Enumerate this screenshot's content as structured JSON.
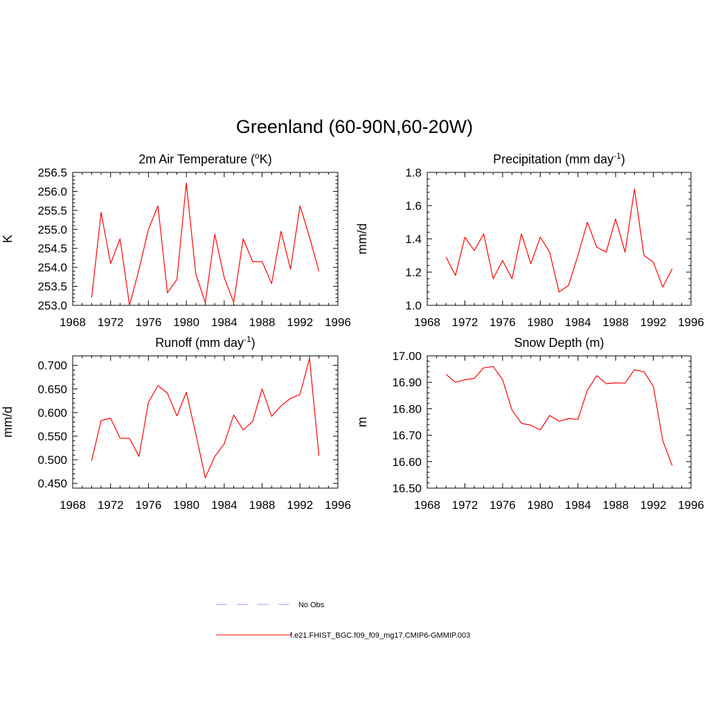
{
  "figure": {
    "title": "Greenland (60-90N,60-20W)"
  },
  "colors": {
    "model": "#ff0000",
    "obs": "#9999ff"
  },
  "legend": [
    {
      "label": "No Obs",
      "style": "dashed",
      "color": "#9999ff"
    },
    {
      "label": "f.e21.FHIST_BGC.f09_f09_mg17.CMIP6-GMMIP.003",
      "style": "solid",
      "color": "#ff0000"
    }
  ],
  "chart_data": [
    {
      "type": "line",
      "title": "2m Air Temperature (",
      "title_sup": "o",
      "title_after": "K)",
      "ylabel": "K",
      "xlim": [
        1968,
        1996
      ],
      "ylim": [
        253.0,
        256.5
      ],
      "xticks": [
        1968,
        1972,
        1976,
        1980,
        1984,
        1988,
        1992,
        1996
      ],
      "yticks": [
        "253.0",
        "253.5",
        "254.0",
        "254.5",
        "255.0",
        "255.5",
        "256.0",
        "256.5"
      ],
      "ytick_values": [
        253.0,
        253.5,
        254.0,
        254.5,
        255.0,
        255.5,
        256.0,
        256.5
      ],
      "x": [
        1970,
        1971,
        1972,
        1973,
        1974,
        1975,
        1976,
        1977,
        1978,
        1979,
        1980,
        1981,
        1982,
        1983,
        1984,
        1985,
        1986,
        1987,
        1988,
        1989,
        1990,
        1991,
        1992,
        1993,
        1994
      ],
      "series": [
        {
          "name": "f.e21.FHIST_BGC.f09_f09_mg17.CMIP6-GMMIP.003",
          "values": [
            253.2,
            255.45,
            254.1,
            254.75,
            253.0,
            253.95,
            255.0,
            255.62,
            253.33,
            253.68,
            256.22,
            253.82,
            253.07,
            254.87,
            253.73,
            253.08,
            254.75,
            254.15,
            254.15,
            253.57,
            254.95,
            253.95,
            255.62,
            254.8,
            253.9
          ]
        }
      ]
    },
    {
      "type": "line",
      "title": "Precipitation (mm day",
      "title_sup": "-1",
      "title_after": ")",
      "ylabel": "mm/d",
      "xlim": [
        1968,
        1996
      ],
      "ylim": [
        1.0,
        1.8
      ],
      "xticks": [
        1968,
        1972,
        1976,
        1980,
        1984,
        1988,
        1992,
        1996
      ],
      "yticks": [
        "1.0",
        "1.2",
        "1.4",
        "1.6",
        "1.8"
      ],
      "ytick_values": [
        1.0,
        1.2,
        1.4,
        1.6,
        1.8
      ],
      "x": [
        1970,
        1971,
        1972,
        1973,
        1974,
        1975,
        1976,
        1977,
        1978,
        1979,
        1980,
        1981,
        1982,
        1983,
        1984,
        1985,
        1986,
        1987,
        1988,
        1989,
        1990,
        1991,
        1992,
        1993,
        1994
      ],
      "series": [
        {
          "name": "f.e21.FHIST_BGC.f09_f09_mg17.CMIP6-GMMIP.003",
          "values": [
            1.29,
            1.18,
            1.41,
            1.33,
            1.43,
            1.16,
            1.27,
            1.16,
            1.43,
            1.25,
            1.41,
            1.32,
            1.08,
            1.12,
            1.3,
            1.5,
            1.35,
            1.32,
            1.52,
            1.32,
            1.7,
            1.3,
            1.26,
            1.11,
            1.22
          ]
        }
      ]
    },
    {
      "type": "line",
      "title": "Runoff (mm day",
      "title_sup": "-1",
      "title_after": ")",
      "ylabel": "mm/d",
      "xlim": [
        1968,
        1996
      ],
      "ylim": [
        0.44,
        0.72
      ],
      "xticks": [
        1968,
        1972,
        1976,
        1980,
        1984,
        1988,
        1992,
        1996
      ],
      "yticks": [
        "0.450",
        "0.500",
        "0.550",
        "0.600",
        "0.650",
        "0.700"
      ],
      "ytick_values": [
        0.45,
        0.5,
        0.55,
        0.6,
        0.65,
        0.7
      ],
      "x": [
        1970,
        1971,
        1972,
        1973,
        1974,
        1975,
        1976,
        1977,
        1978,
        1979,
        1980,
        1981,
        1982,
        1983,
        1984,
        1985,
        1986,
        1987,
        1988,
        1989,
        1990,
        1991,
        1992,
        1993,
        1994
      ],
      "series": [
        {
          "name": "f.e21.FHIST_BGC.f09_f09_mg17.CMIP6-GMMIP.003",
          "values": [
            0.498,
            0.583,
            0.588,
            0.546,
            0.545,
            0.507,
            0.622,
            0.657,
            0.641,
            0.593,
            0.643,
            0.555,
            0.462,
            0.507,
            0.534,
            0.595,
            0.563,
            0.581,
            0.65,
            0.592,
            0.614,
            0.63,
            0.638,
            0.715,
            0.509
          ]
        }
      ]
    },
    {
      "type": "line",
      "title": "Snow Depth (m)",
      "title_sup": "",
      "title_after": "",
      "ylabel": "m",
      "xlim": [
        1968,
        1996
      ],
      "ylim": [
        16.5,
        17.0
      ],
      "xticks": [
        1968,
        1972,
        1976,
        1980,
        1984,
        1988,
        1992,
        1996
      ],
      "yticks": [
        "16.50",
        "16.60",
        "16.70",
        "16.80",
        "16.90",
        "17.00"
      ],
      "ytick_values": [
        16.5,
        16.6,
        16.7,
        16.8,
        16.9,
        17.0
      ],
      "x": [
        1970,
        1971,
        1972,
        1973,
        1974,
        1975,
        1976,
        1977,
        1978,
        1979,
        1980,
        1981,
        1982,
        1983,
        1984,
        1985,
        1986,
        1987,
        1988,
        1989,
        1990,
        1991,
        1992,
        1993,
        1994
      ],
      "series": [
        {
          "name": "f.e21.FHIST_BGC.f09_f09_mg17.CMIP6-GMMIP.003",
          "values": [
            16.93,
            16.9,
            16.91,
            16.915,
            16.955,
            16.96,
            16.91,
            16.795,
            16.745,
            16.738,
            16.72,
            16.775,
            16.753,
            16.763,
            16.76,
            16.87,
            16.925,
            16.895,
            16.898,
            16.897,
            16.948,
            16.94,
            16.885,
            16.68,
            16.585
          ]
        }
      ]
    }
  ]
}
